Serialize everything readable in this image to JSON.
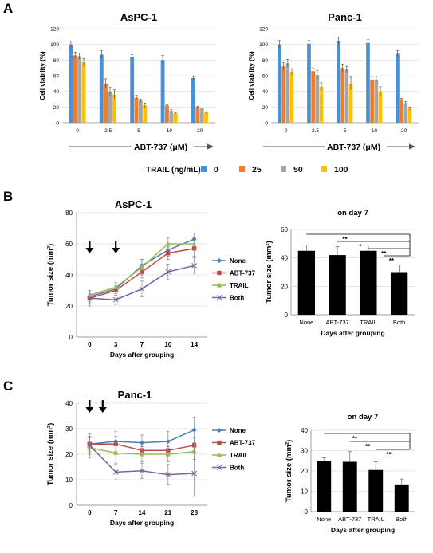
{
  "panel_labels": [
    "A",
    "B",
    "C"
  ],
  "colors": {
    "trail_0": "#4a90d2",
    "trail_25": "#ed7d31",
    "trail_50": "#a5a5a5",
    "trail_100": "#ffc000",
    "none": "#4a7ebb",
    "abt737": "#be4b48",
    "trail": "#98b954",
    "both": "#7d60a0",
    "bar": "#000000"
  },
  "legend_A": {
    "title": "TRAIL (ng/mL)",
    "items": [
      {
        "label": "0",
        "color_key": "trail_0"
      },
      {
        "label": "25",
        "color_key": "trail_25"
      },
      {
        "label": "50",
        "color_key": "trail_50"
      },
      {
        "label": "100",
        "color_key": "trail_100"
      }
    ]
  },
  "chart_data": [
    {
      "id": "A1",
      "type": "bar",
      "title": "AsPC-1",
      "xlabel": "ABT-737 (μM)",
      "ylabel": "Cell viability (%)",
      "ylim": [
        0,
        120
      ],
      "yticks": [
        0,
        20,
        40,
        60,
        80,
        100,
        120
      ],
      "categories": [
        "0",
        "2.5",
        "5",
        "10",
        "20"
      ],
      "series": [
        {
          "name": "0",
          "color_key": "trail_0",
          "values": [
            100,
            87,
            84,
            80,
            57
          ],
          "err": [
            4,
            5,
            3,
            6,
            2
          ]
        },
        {
          "name": "25",
          "color_key": "trail_25",
          "values": [
            86,
            50,
            32,
            22,
            20
          ],
          "err": [
            4,
            6,
            3,
            1,
            1
          ]
        },
        {
          "name": "50",
          "color_key": "trail_50",
          "values": [
            85,
            39,
            28,
            15,
            18
          ],
          "err": [
            4,
            6,
            2,
            2,
            1
          ]
        },
        {
          "name": "100",
          "color_key": "trail_100",
          "values": [
            77,
            36,
            22,
            12,
            13
          ],
          "err": [
            5,
            6,
            3,
            1,
            1
          ]
        }
      ]
    },
    {
      "id": "A2",
      "type": "bar",
      "title": "Panc-1",
      "xlabel": "ABT-737 (μM)",
      "ylabel": "Cell viability (%)",
      "ylim": [
        0,
        120
      ],
      "yticks": [
        0,
        20,
        40,
        60,
        80,
        100,
        120
      ],
      "categories": [
        "0",
        "2.5",
        "5",
        "10",
        "20"
      ],
      "series": [
        {
          "name": "0",
          "color_key": "trail_0",
          "values": [
            100,
            101,
            104,
            102,
            88
          ],
          "err": [
            5,
            4,
            5,
            4,
            4
          ]
        },
        {
          "name": "25",
          "color_key": "trail_25",
          "values": [
            72,
            66,
            70,
            55,
            30
          ],
          "err": [
            5,
            4,
            5,
            4,
            1
          ]
        },
        {
          "name": "50",
          "color_key": "trail_50",
          "values": [
            76,
            61,
            68,
            55,
            25
          ],
          "err": [
            5,
            6,
            4,
            4,
            2
          ]
        },
        {
          "name": "100",
          "color_key": "trail_100",
          "values": [
            65,
            46,
            50,
            40,
            18
          ],
          "err": [
            4,
            5,
            8,
            6,
            2
          ]
        }
      ]
    },
    {
      "id": "B1",
      "type": "line",
      "title": "AsPC-1",
      "xlabel": "Days after grouping",
      "ylabel": "Tumor size (mm²)",
      "ylim": [
        0,
        80
      ],
      "yticks": [
        0,
        20,
        40,
        60,
        80
      ],
      "x": [
        "0",
        "3",
        "7",
        "10",
        "14"
      ],
      "arrows_at": [
        0,
        1
      ],
      "series": [
        {
          "name": "None",
          "color_key": "none",
          "marker": "diamond",
          "values": [
            26,
            31,
            46,
            56,
            63
          ],
          "err": [
            3,
            3,
            4,
            4,
            4
          ]
        },
        {
          "name": "ABT-737",
          "color_key": "abt737",
          "marker": "square",
          "values": [
            25,
            30,
            42,
            54,
            57
          ],
          "err": [
            3,
            3,
            4,
            4,
            5
          ]
        },
        {
          "name": "TRAIL",
          "color_key": "trail",
          "marker": "triangle",
          "values": [
            27,
            32,
            45,
            60,
            60
          ],
          "err": [
            3,
            3,
            5,
            4,
            4
          ]
        },
        {
          "name": "Both",
          "color_key": "both",
          "marker": "x",
          "values": [
            25,
            24,
            31,
            42,
            46
          ],
          "err": [
            5,
            3,
            5,
            5,
            5
          ]
        }
      ]
    },
    {
      "id": "B2",
      "type": "bar",
      "title": "on day 7",
      "xlabel": "Days after grouping",
      "ylabel": "Tumor size (mm²)",
      "ylim": [
        0,
        60
      ],
      "yticks": [
        0,
        20,
        40,
        60
      ],
      "categories": [
        "None",
        "ABT-737",
        "TRAIL",
        "Both"
      ],
      "values": [
        45,
        42,
        45,
        30
      ],
      "err": [
        4,
        6,
        4,
        5
      ],
      "sig": [
        {
          "from": 0,
          "to": 3,
          "label": "**"
        },
        {
          "from": 1,
          "to": 3,
          "label": "*"
        },
        {
          "from": 2,
          "to": 3,
          "label": "**"
        },
        {
          "from": 2.5,
          "to": 3,
          "label": "**"
        }
      ]
    },
    {
      "id": "C1",
      "type": "line",
      "title": "Panc-1",
      "xlabel": "Days after grouping",
      "ylabel": "Tumor size (mm²)",
      "ylim": [
        0,
        40
      ],
      "yticks": [
        0,
        10,
        20,
        30,
        40
      ],
      "x": [
        "0",
        "7",
        "14",
        "21",
        "28"
      ],
      "arrows_at": [
        0,
        0.5
      ],
      "series": [
        {
          "name": "None",
          "color_key": "none",
          "marker": "diamond",
          "values": [
            24,
            25,
            24.5,
            25,
            29.5
          ],
          "err": [
            4,
            4,
            3,
            4,
            5
          ]
        },
        {
          "name": "ABT-737",
          "color_key": "abt737",
          "marker": "square",
          "values": [
            24,
            24,
            21.5,
            21.5,
            23.5
          ],
          "err": [
            3,
            3,
            2,
            2,
            3
          ]
        },
        {
          "name": "TRAIL",
          "color_key": "trail",
          "marker": "triangle",
          "values": [
            22.5,
            20.5,
            20,
            20,
            21
          ],
          "err": [
            4,
            4,
            3,
            3,
            3
          ]
        },
        {
          "name": "Both",
          "color_key": "both",
          "marker": "x",
          "values": [
            23.5,
            13,
            13.5,
            12,
            12.5
          ],
          "err": [
            3,
            3,
            3,
            4,
            9
          ]
        }
      ]
    },
    {
      "id": "C2",
      "type": "bar",
      "title": "on day 7",
      "xlabel": "Days after grouping",
      "ylabel": "Tumor size (mm²)",
      "ylim": [
        0,
        40
      ],
      "yticks": [
        0,
        10,
        20,
        30,
        40
      ],
      "categories": [
        "None",
        "ABT-737",
        "TRAIL",
        "Both"
      ],
      "values": [
        25,
        24.5,
        20.5,
        13
      ],
      "err": [
        1.5,
        5,
        4,
        3
      ],
      "sig": [
        {
          "from": 0,
          "to": 3,
          "label": "**"
        },
        {
          "from": 1,
          "to": 3,
          "label": "**"
        },
        {
          "from": 2,
          "to": 3,
          "label": "**"
        }
      ]
    }
  ]
}
